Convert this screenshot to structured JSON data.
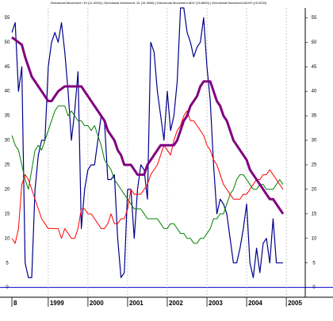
{
  "chart_data": {
    "type": "line",
    "title": "Directional Movement +DI (21.0000) | Directional Movement -DI (19.3096) | Directional Movement ADX (15.8000) | Directional Movement ADXR (15.0200)",
    "categories": [
      "8",
      null,
      null,
      null,
      null,
      null,
      null,
      null,
      null,
      null,
      null,
      "1999",
      null,
      null,
      null,
      null,
      null,
      null,
      null,
      null,
      null,
      null,
      null,
      "2000",
      null,
      null,
      null,
      null,
      null,
      null,
      null,
      null,
      null,
      null,
      null,
      "2001",
      null,
      null,
      null,
      null,
      null,
      null,
      null,
      null,
      null,
      null,
      null,
      "2002",
      null,
      null,
      null,
      null,
      null,
      null,
      null,
      null,
      null,
      null,
      null,
      "2003",
      null,
      null,
      null,
      null,
      null,
      null,
      null,
      null,
      null,
      null,
      null,
      "2004",
      null,
      null,
      null,
      null,
      null,
      null,
      null,
      null,
      null,
      null,
      null,
      "2005"
    ],
    "series": [
      {
        "color": "#00008b",
        "width": 1.2,
        "values": [
          52,
          54,
          40,
          45,
          5,
          2,
          2,
          20,
          27,
          30,
          30,
          45,
          50,
          52,
          50,
          54,
          48,
          40,
          30,
          36,
          44,
          12,
          20,
          24,
          25,
          25,
          30,
          35,
          34,
          22,
          22,
          23,
          10,
          2,
          3,
          20,
          20,
          10,
          20,
          25,
          24,
          18,
          50,
          48,
          40,
          35,
          30,
          40,
          32,
          35,
          42,
          57,
          57,
          52,
          50,
          47,
          49,
          50,
          55,
          45,
          38,
          25,
          15,
          18,
          17,
          15,
          10,
          5,
          5,
          8,
          12,
          17,
          5,
          2,
          8,
          3,
          9,
          10,
          5,
          14,
          5,
          5,
          5,
          null
        ]
      },
      {
        "color": "#008000",
        "width": 1,
        "values": [
          31,
          29,
          28,
          25,
          22,
          20,
          24,
          28,
          29,
          28,
          30,
          32,
          34,
          36,
          37,
          37,
          37,
          35,
          36,
          35,
          34,
          34,
          33,
          33,
          32,
          33,
          31,
          29,
          26,
          25,
          24,
          22,
          21,
          20,
          19,
          18,
          17,
          16,
          16,
          16,
          15,
          14,
          14,
          14,
          14,
          13,
          12,
          12,
          13,
          13,
          12,
          11,
          11,
          10,
          10,
          9,
          9,
          10,
          10,
          11,
          12,
          14,
          14,
          15,
          15,
          17,
          19,
          20,
          22,
          23,
          23,
          22,
          21,
          20,
          20,
          21,
          21,
          20,
          20,
          20,
          21,
          22,
          21,
          null
        ]
      },
      {
        "color": "#ff0000",
        "width": 1,
        "values": [
          10,
          9,
          12,
          21,
          23,
          22,
          20,
          18,
          16,
          14,
          13,
          12,
          12,
          12,
          12,
          10,
          12,
          11,
          10,
          10,
          12,
          16,
          16,
          15,
          15,
          14,
          13,
          12,
          12,
          13,
          15,
          13,
          13,
          14,
          14,
          16,
          20,
          19,
          19,
          19,
          20,
          21,
          23,
          24,
          25,
          27,
          29,
          28,
          27,
          30,
          32,
          33,
          35,
          36,
          34,
          34,
          33,
          32,
          31,
          29,
          28,
          26,
          25,
          23,
          21,
          20,
          19,
          18,
          18,
          18,
          19,
          19,
          20,
          21,
          22,
          22,
          23,
          23,
          24,
          23,
          22,
          21,
          20,
          null
        ]
      },
      {
        "color": "#800080",
        "width": 3,
        "values": [
          51,
          50.5,
          50,
          49.5,
          47,
          45,
          43,
          42,
          41,
          40,
          39,
          38,
          38,
          39,
          40,
          40.5,
          41,
          41,
          41,
          41,
          41,
          41,
          40,
          39,
          38,
          37,
          36,
          35,
          34,
          32,
          31,
          30,
          28,
          27,
          25,
          25,
          25,
          24,
          23,
          23,
          23,
          25,
          26,
          27,
          28,
          29,
          29,
          29,
          29,
          29,
          30,
          32,
          34,
          35,
          37,
          38,
          39,
          41,
          42,
          42,
          42,
          40,
          38,
          37,
          35,
          34,
          32,
          30,
          29,
          28,
          27,
          26,
          24,
          23,
          22,
          21,
          20,
          19,
          18,
          18,
          17,
          16,
          15,
          null
        ]
      }
    ],
    "ylim": [
      -2,
      57
    ],
    "yticks": [
      0,
      5,
      10,
      15,
      20,
      25,
      30,
      35,
      40,
      45,
      50,
      55
    ],
    "grid": true,
    "zero_line_color": "#0000cc"
  }
}
